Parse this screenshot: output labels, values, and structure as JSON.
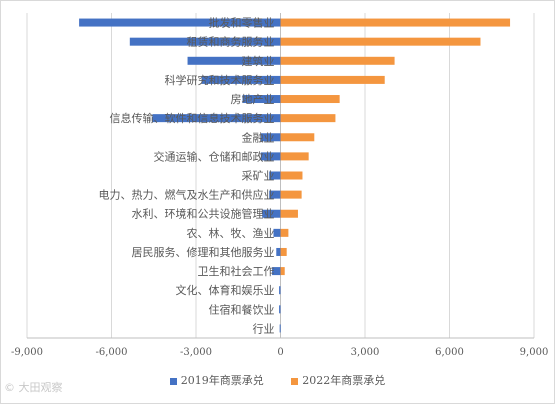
{
  "chart_data": {
    "type": "bar",
    "orientation": "horizontal",
    "categories": [
      "批发和零售业",
      "租赁和商务服务业",
      "建筑业",
      "科学研究和技术服务业",
      "房地产业",
      "信息传输、软件和信息技术服务业",
      "金融业",
      "交通运输、仓储和邮政业",
      "采矿业",
      "电力、热力、燃气及水生产和供应业",
      "水利、环境和公共设施管理业",
      "农、林、牧、渔业",
      "居民服务、修理和其他服务业",
      "卫生和社会工作",
      "文化、体育和娱乐业",
      "住宿和餐饮业",
      "行业"
    ],
    "series": [
      {
        "name": "2019年商票承兑",
        "color": "#4472c4",
        "values": [
          -7150,
          -5350,
          -3300,
          -2800,
          -1350,
          -4550,
          -700,
          -700,
          -400,
          -400,
          -650,
          -250,
          -150,
          -300,
          -50,
          -50,
          -30
        ]
      },
      {
        "name": "2022年商票承兑",
        "color": "#f4963f",
        "values": [
          8150,
          7100,
          4050,
          3700,
          2100,
          1950,
          1200,
          1000,
          780,
          750,
          620,
          280,
          220,
          150,
          0,
          0,
          0
        ]
      }
    ],
    "xlim": [
      -9000,
      9000
    ],
    "xticks": [
      "-9,000",
      "-6,000",
      "-3,000",
      "0",
      "3,000",
      "6,000",
      "9,000"
    ],
    "grid": true,
    "legend_position": "bottom"
  },
  "watermark": "© 大田观察"
}
